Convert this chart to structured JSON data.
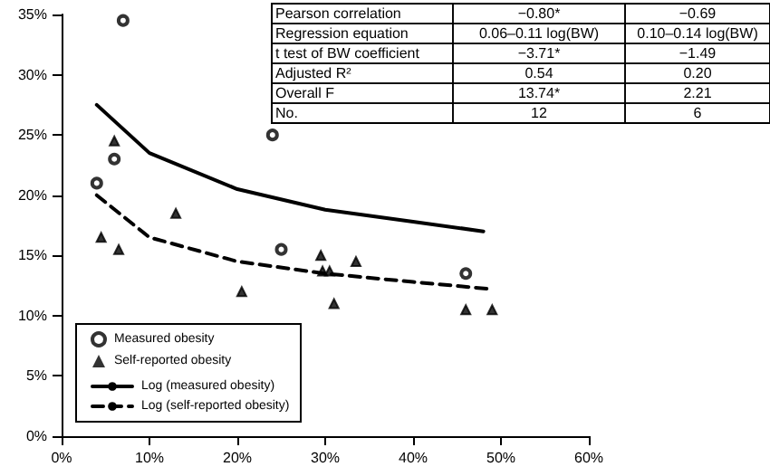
{
  "chart_data": {
    "type": "scatter",
    "xlim": [
      0,
      60
    ],
    "xticks": [
      {
        "value": 0,
        "label": "0%"
      },
      {
        "value": 10,
        "label": "10%"
      },
      {
        "value": 20,
        "label": "20%"
      },
      {
        "value": 30,
        "label": "30%"
      },
      {
        "value": 40,
        "label": "40%"
      },
      {
        "value": 50,
        "label": "50%"
      },
      {
        "value": 60,
        "label": "60%"
      }
    ],
    "ylim": [
      0,
      35
    ],
    "yticks": [
      {
        "value": 0,
        "label": "0%"
      },
      {
        "value": 5,
        "label": "5%"
      },
      {
        "value": 10,
        "label": "10%"
      },
      {
        "value": 15,
        "label": "15%"
      },
      {
        "value": 20,
        "label": "20%"
      },
      {
        "value": 25,
        "label": "25%"
      },
      {
        "value": 30,
        "label": "30%"
      },
      {
        "value": 35,
        "label": "35%"
      }
    ],
    "grid": false,
    "legend": "bottom left",
    "series": [
      {
        "name": "Measured obesity",
        "marker": "circle",
        "color": "#000000",
        "x": [
          4,
          6,
          7,
          24,
          25,
          46
        ],
        "values": [
          21,
          23,
          34.5,
          25,
          15.5,
          13.5
        ]
      },
      {
        "name": "Self-reported obesity",
        "marker": "triangle",
        "color": "#000000",
        "x": [
          4.5,
          6.5,
          6,
          13,
          20.5,
          29.5,
          29.7,
          30.5,
          31,
          33.5,
          46,
          49
        ],
        "values": [
          16.5,
          15.5,
          24.5,
          18.5,
          12,
          15,
          13.7,
          13.7,
          11,
          14.5,
          10.5,
          10.5
        ]
      },
      {
        "name": "Log (measured obesity)",
        "type": "line",
        "line_style": "solid",
        "marker": "none",
        "color": "#000000",
        "x": [
          4,
          10,
          20,
          30,
          40,
          48
        ],
        "values": [
          27.5,
          23.5,
          20.5,
          18.8,
          17.8,
          17
        ]
      },
      {
        "name": "Log (self-reported obesity)",
        "type": "line",
        "line_style": "dashed",
        "marker": "none",
        "color": "#000000",
        "x": [
          4,
          10,
          20,
          30,
          40,
          49
        ],
        "values": [
          20,
          16.5,
          14.5,
          13.5,
          12.8,
          12.2
        ]
      }
    ],
    "annotations": [
      "Pearson correlation",
      "−0.80*",
      "−0.69",
      "Regression equation",
      "0.06–0.11 log(BW)",
      "0.10–0.14 log(BW)",
      "t test of BW coefficient",
      "−3.71*",
      "−1.49",
      "Adjusted R²",
      "0.54",
      "0.20",
      "Overall F",
      "13.74*",
      "2.21",
      "No.",
      "12",
      "6"
    ]
  }
}
